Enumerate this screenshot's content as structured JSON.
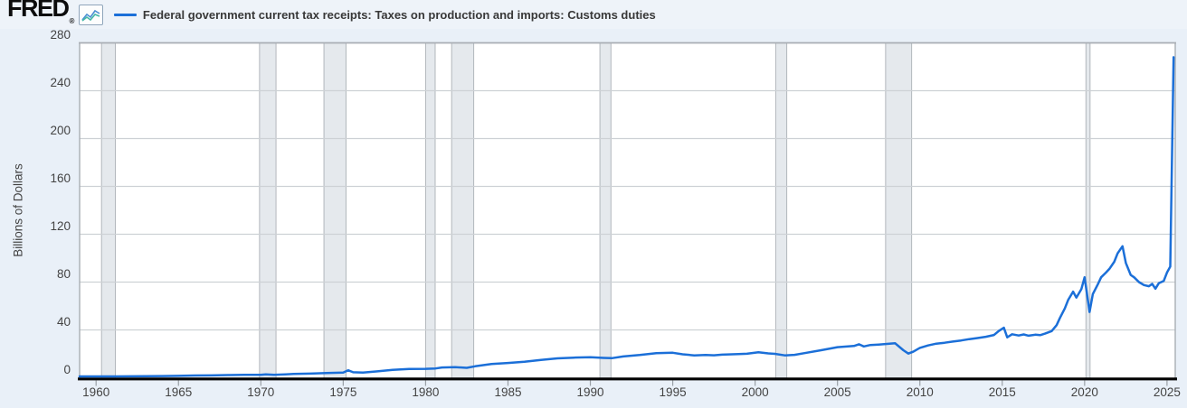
{
  "header": {
    "logo": "FRED",
    "registered_mark": "®",
    "series_title": "Federal government current tax receipts: Taxes on production and imports: Customs duties"
  },
  "colors": {
    "line": "#1b6fd8",
    "legend_swatch": "#1b6fd8",
    "background": "#e9f0f8",
    "plot_background": "#ffffff",
    "gridline": "#cdd1d5",
    "plot_border": "#a9aeb4",
    "axis_line": "#000000",
    "recession_band_fill": "#e5e9ed",
    "recession_band_edge": "#b2b7bc",
    "tick_text": "#434343",
    "icon_line_blue": "#4a8fd3",
    "icon_line_teal": "#45b8a7"
  },
  "chart_data": {
    "type": "line",
    "title": "Federal government current tax receipts: Taxes on production and imports: Customs duties",
    "xlabel": "",
    "ylabel": "Billions of Dollars",
    "xlim": [
      1959,
      2025.5
    ],
    "ylim": [
      0,
      280
    ],
    "x_ticks": [
      1960,
      1965,
      1970,
      1975,
      1980,
      1985,
      1990,
      1995,
      2000,
      2005,
      2010,
      2015,
      2020,
      2025
    ],
    "y_ticks": [
      0,
      40,
      80,
      120,
      160,
      200,
      240,
      280
    ],
    "grid": "horizontal",
    "legend_position": "top-left-header",
    "recession_bands": [
      [
        1960.33,
        1961.17
      ],
      [
        1969.92,
        1970.92
      ],
      [
        1973.83,
        1975.17
      ],
      [
        1980.0,
        1980.58
      ],
      [
        1981.58,
        1982.92
      ],
      [
        1990.58,
        1991.25
      ],
      [
        2001.25,
        2001.92
      ],
      [
        2007.92,
        2009.5
      ],
      [
        2020.08,
        2020.33
      ]
    ],
    "series_name": "Federal government current tax receipts: Taxes on production and imports: Customs duties",
    "points": [
      [
        1959,
        1.1
      ],
      [
        1960,
        1.1
      ],
      [
        1961,
        1.1
      ],
      [
        1962,
        1.2
      ],
      [
        1963,
        1.3
      ],
      [
        1964,
        1.4
      ],
      [
        1965,
        1.6
      ],
      [
        1966,
        1.9
      ],
      [
        1967,
        2.0
      ],
      [
        1968,
        2.3
      ],
      [
        1969,
        2.4
      ],
      [
        1970,
        2.5
      ],
      [
        1970.3,
        2.9
      ],
      [
        1970.8,
        2.4
      ],
      [
        1971.5,
        2.8
      ],
      [
        1972,
        3.2
      ],
      [
        1973,
        3.5
      ],
      [
        1974,
        3.9
      ],
      [
        1975,
        4.3
      ],
      [
        1975.3,
        6.3
      ],
      [
        1975.6,
        4.6
      ],
      [
        1976.2,
        4.4
      ],
      [
        1977,
        5.3
      ],
      [
        1978,
        6.6
      ],
      [
        1979,
        7.3
      ],
      [
        1980,
        7.5
      ],
      [
        1980.6,
        7.8
      ],
      [
        1981,
        8.6
      ],
      [
        1981.8,
        8.9
      ],
      [
        1982.5,
        8.3
      ],
      [
        1983,
        9.6
      ],
      [
        1984,
        11.5
      ],
      [
        1985,
        12.4
      ],
      [
        1986,
        13.4
      ],
      [
        1987,
        14.9
      ],
      [
        1988,
        16.2
      ],
      [
        1989,
        16.8
      ],
      [
        1990,
        17.2
      ],
      [
        1990.8,
        16.6
      ],
      [
        1991.3,
        16.4
      ],
      [
        1992,
        17.8
      ],
      [
        1993,
        19.0
      ],
      [
        1994,
        20.5
      ],
      [
        1995,
        20.9
      ],
      [
        1995.6,
        19.6
      ],
      [
        1996.3,
        18.7
      ],
      [
        1997,
        19.0
      ],
      [
        1997.5,
        18.8
      ],
      [
        1998,
        19.3
      ],
      [
        1999,
        19.8
      ],
      [
        1999.5,
        20.1
      ],
      [
        2000.2,
        21.3
      ],
      [
        2000.8,
        20.4
      ],
      [
        2001.2,
        20.0
      ],
      [
        2001.8,
        18.7
      ],
      [
        2002.4,
        19.2
      ],
      [
        2003,
        20.6
      ],
      [
        2004,
        23.0
      ],
      [
        2005,
        25.6
      ],
      [
        2006,
        26.6
      ],
      [
        2006.3,
        28.0
      ],
      [
        2006.6,
        26.2
      ],
      [
        2007,
        27.4
      ],
      [
        2007.5,
        27.8
      ],
      [
        2008,
        28.3
      ],
      [
        2008.5,
        28.8
      ],
      [
        2009,
        23.0
      ],
      [
        2009.3,
        20.2
      ],
      [
        2009.6,
        21.8
      ],
      [
        2010,
        25.0
      ],
      [
        2010.5,
        27.0
      ],
      [
        2011,
        28.5
      ],
      [
        2011.5,
        29.3
      ],
      [
        2012,
        30.3
      ],
      [
        2012.5,
        31.2
      ],
      [
        2013,
        32.3
      ],
      [
        2013.5,
        33.2
      ],
      [
        2014,
        34.3
      ],
      [
        2014.5,
        35.8
      ],
      [
        2014.8,
        39.2
      ],
      [
        2015.1,
        41.8
      ],
      [
        2015.3,
        33.8
      ],
      [
        2015.6,
        36.4
      ],
      [
        2016,
        35.3
      ],
      [
        2016.3,
        36.2
      ],
      [
        2016.6,
        35.2
      ],
      [
        2017,
        36.0
      ],
      [
        2017.3,
        35.6
      ],
      [
        2017.6,
        36.9
      ],
      [
        2018,
        39.0
      ],
      [
        2018.3,
        44.0
      ],
      [
        2018.5,
        50.0
      ],
      [
        2018.8,
        58.0
      ],
      [
        2019,
        65.0
      ],
      [
        2019.3,
        72.0
      ],
      [
        2019.5,
        67.0
      ],
      [
        2019.8,
        74.0
      ],
      [
        2020,
        84.0
      ],
      [
        2020.3,
        55.0
      ],
      [
        2020.5,
        70.0
      ],
      [
        2020.8,
        78.0
      ],
      [
        2021,
        84.0
      ],
      [
        2021.3,
        88.0
      ],
      [
        2021.5,
        91.0
      ],
      [
        2021.8,
        97.0
      ],
      [
        2022,
        104.0
      ],
      [
        2022.3,
        110.0
      ],
      [
        2022.5,
        96.0
      ],
      [
        2022.8,
        86.0
      ],
      [
        2023,
        84.0
      ],
      [
        2023.3,
        80.0
      ],
      [
        2023.6,
        77.5
      ],
      [
        2023.9,
        76.5
      ],
      [
        2024.1,
        78.5
      ],
      [
        2024.3,
        74.5
      ],
      [
        2024.5,
        79.0
      ],
      [
        2024.8,
        81.0
      ],
      [
        2025,
        88.0
      ],
      [
        2025.2,
        93.0
      ],
      [
        2025.4,
        268.0
      ]
    ]
  }
}
